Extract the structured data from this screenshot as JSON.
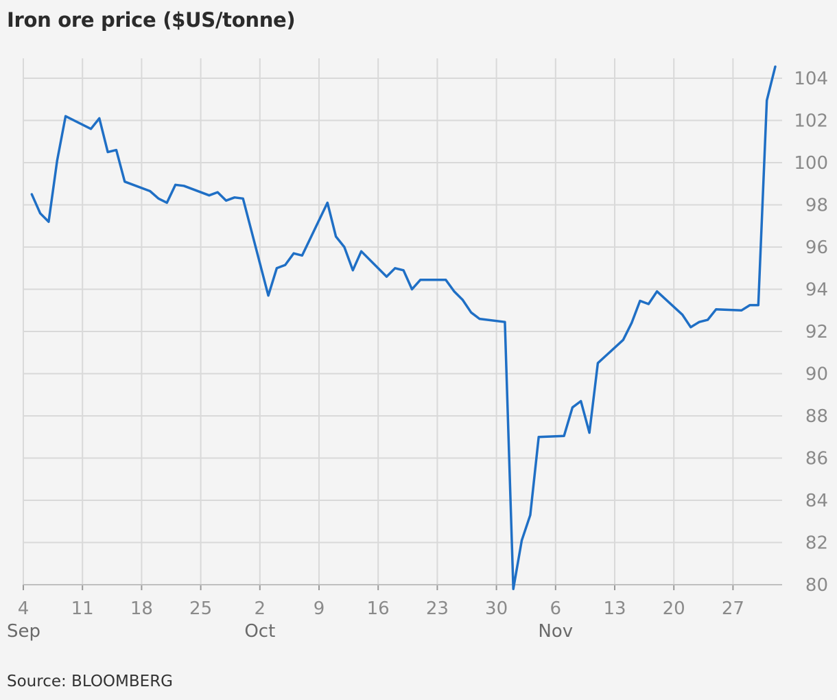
{
  "chart_data": {
    "type": "line",
    "title": "Iron ore price ($US/tonne)",
    "source": "Source: BLOOMBERG",
    "ylim": [
      80,
      104.5
    ],
    "y_ticks": [
      80,
      82,
      84,
      86,
      88,
      90,
      92,
      94,
      96,
      98,
      100,
      102,
      104
    ],
    "y_axis_side": "right",
    "grid": true,
    "x_ticks": [
      {
        "date": "2023-09-04",
        "label": "4",
        "month": "Sep"
      },
      {
        "date": "2023-09-11",
        "label": "11"
      },
      {
        "date": "2023-09-18",
        "label": "18"
      },
      {
        "date": "2023-09-25",
        "label": "25"
      },
      {
        "date": "2023-10-02",
        "label": "2",
        "month": "Oct"
      },
      {
        "date": "2023-10-09",
        "label": "9"
      },
      {
        "date": "2023-10-16",
        "label": "16"
      },
      {
        "date": "2023-10-23",
        "label": "23"
      },
      {
        "date": "2023-10-30",
        "label": "30"
      },
      {
        "date": "2023-11-06",
        "label": "6",
        "month": "Nov"
      },
      {
        "date": "2023-11-13",
        "label": "13"
      },
      {
        "date": "2023-11-20",
        "label": "20"
      },
      {
        "date": "2023-11-27",
        "label": "27"
      }
    ],
    "xlim": [
      "2023-09-04",
      "2023-12-01"
    ],
    "line_color": "#1f6fc5",
    "series": [
      {
        "points": [
          [
            "2023-09-05",
            98.5
          ],
          [
            "2023-09-06",
            97.6
          ],
          [
            "2023-09-07",
            97.2
          ],
          [
            "2023-09-08",
            100.1
          ],
          [
            "2023-09-09",
            102.2
          ],
          [
            "2023-09-12",
            101.6
          ],
          [
            "2023-09-13",
            102.1
          ],
          [
            "2023-09-14",
            100.5
          ],
          [
            "2023-09-15",
            100.6
          ],
          [
            "2023-09-16",
            99.1
          ],
          [
            "2023-09-19",
            98.65
          ],
          [
            "2023-09-20",
            98.3
          ],
          [
            "2023-09-21",
            98.1
          ],
          [
            "2023-09-22",
            98.95
          ],
          [
            "2023-09-23",
            98.9
          ],
          [
            "2023-09-26",
            98.45
          ],
          [
            "2023-09-27",
            98.6
          ],
          [
            "2023-09-28",
            98.2
          ],
          [
            "2023-09-29",
            98.35
          ],
          [
            "2023-09-30",
            98.3
          ],
          [
            "2023-10-03",
            93.7
          ],
          [
            "2023-10-04",
            95.0
          ],
          [
            "2023-10-05",
            95.15
          ],
          [
            "2023-10-06",
            95.7
          ],
          [
            "2023-10-07",
            95.6
          ],
          [
            "2023-10-10",
            98.1
          ],
          [
            "2023-10-11",
            96.5
          ],
          [
            "2023-10-12",
            96.0
          ],
          [
            "2023-10-13",
            94.9
          ],
          [
            "2023-10-14",
            95.8
          ],
          [
            "2023-10-17",
            94.6
          ],
          [
            "2023-10-18",
            95.0
          ],
          [
            "2023-10-19",
            94.9
          ],
          [
            "2023-10-20",
            94.0
          ],
          [
            "2023-10-21",
            94.45
          ],
          [
            "2023-10-24",
            94.45
          ],
          [
            "2023-10-25",
            93.9
          ],
          [
            "2023-10-26",
            93.5
          ],
          [
            "2023-10-27",
            92.9
          ],
          [
            "2023-10-28",
            92.6
          ],
          [
            "2023-10-31",
            92.45
          ],
          [
            "2023-11-01",
            79.8
          ],
          [
            "2023-11-02",
            82.1
          ],
          [
            "2023-11-03",
            83.3
          ],
          [
            "2023-11-04",
            87.0
          ],
          [
            "2023-11-07",
            87.05
          ],
          [
            "2023-11-08",
            88.4
          ],
          [
            "2023-11-09",
            88.7
          ],
          [
            "2023-11-10",
            87.2
          ],
          [
            "2023-11-11",
            90.5
          ],
          [
            "2023-11-14",
            91.6
          ],
          [
            "2023-11-15",
            92.4
          ],
          [
            "2023-11-16",
            93.45
          ],
          [
            "2023-11-17",
            93.3
          ],
          [
            "2023-11-18",
            93.9
          ],
          [
            "2023-11-21",
            92.8
          ],
          [
            "2023-11-22",
            92.2
          ],
          [
            "2023-11-23",
            92.45
          ],
          [
            "2023-11-24",
            92.55
          ],
          [
            "2023-11-25",
            93.05
          ],
          [
            "2023-11-28",
            93.0
          ],
          [
            "2023-11-29",
            93.25
          ],
          [
            "2023-11-30",
            93.25
          ],
          [
            "2023-12-01",
            102.95
          ],
          [
            "2023-12-02",
            104.55
          ]
        ]
      }
    ]
  }
}
